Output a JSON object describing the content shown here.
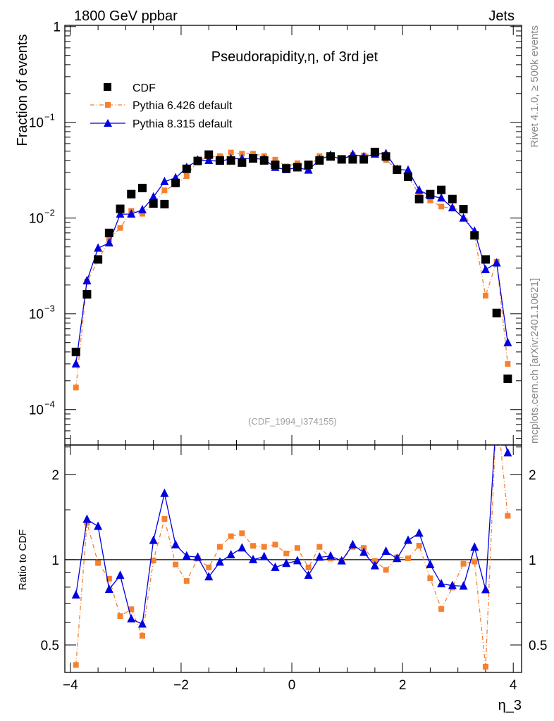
{
  "header": {
    "left": "1800 GeV ppbar",
    "right": "Jets"
  },
  "side": {
    "top": "Rivet 4.1.0, ≥ 500k events",
    "bottom": "mcplots.cern.ch [arXiv:2401.10621]"
  },
  "watermark": "(CDF_1994_I374155)",
  "chart_data": {
    "type": "scatter",
    "title": "Pseudorapidity,η, of 3rd jet",
    "xlabel": "η_3",
    "ylabel": "Fraction of events",
    "ratio_ylabel": "Ratio to CDF",
    "xlim": [
      -4.1,
      4.15
    ],
    "ylim": [
      4.27e-05,
      1.03
    ],
    "yscale": "log",
    "ratio_ylim": [
      0.4,
      2.54
    ],
    "x_ticks": [
      -4,
      -2,
      0,
      2,
      4
    ],
    "x_tick_labels": [
      "−4",
      "−2",
      "0",
      "2",
      "4"
    ],
    "y_ticks": [
      1,
      0.1,
      0.01,
      0.001,
      0.0001
    ],
    "y_tick_labels": [
      "1",
      "10^-1",
      "10^-2",
      "10^-3",
      "10^-4"
    ],
    "ratio_ticks": [
      2,
      1,
      0.5
    ],
    "ratio_tick_labels": [
      "2",
      "1",
      "0.5"
    ],
    "legend_position": "top-left",
    "x": [
      -3.9,
      -3.7,
      -3.5,
      -3.3,
      -3.1,
      -2.9,
      -2.7,
      -2.5,
      -2.3,
      -2.1,
      -1.9,
      -1.7,
      -1.5,
      -1.3,
      -1.1,
      -0.9,
      -0.7,
      -0.5,
      -0.3,
      -0.1,
      0.1,
      0.3,
      0.5,
      0.7,
      0.9,
      1.1,
      1.3,
      1.5,
      1.7,
      1.9,
      2.1,
      2.3,
      2.5,
      2.7,
      2.9,
      3.1,
      3.3,
      3.5,
      3.7,
      3.9
    ],
    "series": [
      {
        "name": "CDF",
        "color": "#000000",
        "marker": "square",
        "values": [
          0.0004,
          0.0016,
          0.0037,
          0.007,
          0.0125,
          0.0178,
          0.0206,
          0.0142,
          0.014,
          0.0233,
          0.0327,
          0.0395,
          0.046,
          0.04,
          0.04,
          0.038,
          0.042,
          0.04,
          0.036,
          0.033,
          0.034,
          0.036,
          0.04,
          0.044,
          0.041,
          0.041,
          0.041,
          0.049,
          0.044,
          0.032,
          0.027,
          0.0158,
          0.0178,
          0.0197,
          0.0158,
          0.0124,
          0.0066,
          0.0037,
          0.00102,
          0.00021
        ]
      },
      {
        "name": "Pythia 6.426 default",
        "color": "#f5812f",
        "marker": "square-small",
        "line": "dashdot",
        "values": [
          0.00017,
          0.00216,
          0.0036,
          0.006,
          0.0079,
          0.0119,
          0.0111,
          0.0141,
          0.0195,
          0.0224,
          0.0275,
          0.0399,
          0.0432,
          0.0444,
          0.0484,
          0.0471,
          0.047,
          0.0444,
          0.0407,
          0.0347,
          0.0374,
          0.0338,
          0.0444,
          0.0444,
          0.0406,
          0.0455,
          0.0451,
          0.0485,
          0.0405,
          0.0326,
          0.0273,
          0.0177,
          0.0153,
          0.0132,
          0.0126,
          0.012,
          0.0065,
          0.00155,
          0.0035,
          0.0003
        ]
      },
      {
        "name": "Pythia 8.315 default",
        "color": "#0000e0",
        "marker": "triangle",
        "line": "solid",
        "values": [
          0.0003,
          0.00222,
          0.00485,
          0.0055,
          0.011,
          0.011,
          0.0122,
          0.0166,
          0.024,
          0.0263,
          0.0337,
          0.0403,
          0.04,
          0.0392,
          0.0416,
          0.0418,
          0.042,
          0.041,
          0.0338,
          0.032,
          0.0337,
          0.0317,
          0.0408,
          0.0453,
          0.0406,
          0.0463,
          0.0435,
          0.0466,
          0.0471,
          0.0323,
          0.0316,
          0.0196,
          0.0171,
          0.0162,
          0.0128,
          0.01,
          0.0073,
          0.0029,
          0.0034,
          0.0005
        ]
      }
    ]
  }
}
